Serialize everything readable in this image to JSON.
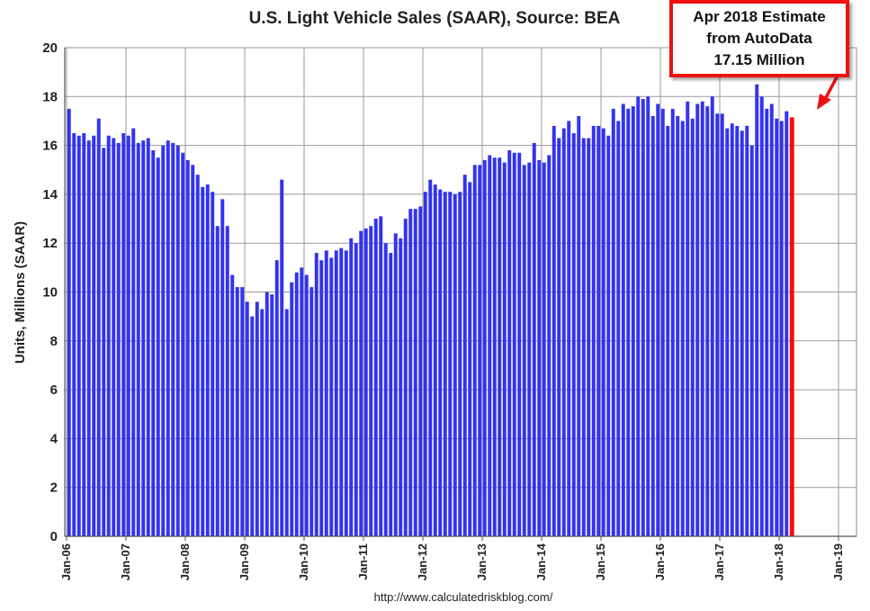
{
  "chart_data": {
    "type": "bar",
    "title": "U.S. Light Vehicle Sales (SAAR), Source: BEA",
    "ylabel": "Units, Millions (SAAR)",
    "xlabel": "",
    "ylim": [
      0,
      20
    ],
    "yticks": [
      "0",
      "2",
      "4",
      "6",
      "8",
      "10",
      "12",
      "14",
      "16",
      "18",
      "20"
    ],
    "xticks": [
      "Jan-06",
      "Jan-07",
      "Jan-08",
      "Jan-09",
      "Jan-10",
      "Jan-11",
      "Jan-12",
      "Jan-13",
      "Jan-14",
      "Jan-15",
      "Jan-16",
      "Jan-17",
      "Jan-18",
      "Jan-19"
    ],
    "start": "Jan-06",
    "grid": true,
    "series": [
      {
        "name": "Light Vehicle Sales (SAAR)",
        "values": [
          17.5,
          16.5,
          16.4,
          16.5,
          16.2,
          16.4,
          17.1,
          15.9,
          16.4,
          16.3,
          16.1,
          16.5,
          16.4,
          16.7,
          16.1,
          16.2,
          16.3,
          15.8,
          15.5,
          16.0,
          16.2,
          16.1,
          16.0,
          15.7,
          15.4,
          15.2,
          14.8,
          14.3,
          14.4,
          14.1,
          12.7,
          13.8,
          12.7,
          10.7,
          10.2,
          10.2,
          9.6,
          9.0,
          9.6,
          9.3,
          10.0,
          9.9,
          11.3,
          14.6,
          9.3,
          10.4,
          10.8,
          11.0,
          10.7,
          10.2,
          11.6,
          11.3,
          11.7,
          11.4,
          11.7,
          11.8,
          11.7,
          12.2,
          12.0,
          12.5,
          12.6,
          12.7,
          13.0,
          13.1,
          12.0,
          11.6,
          12.4,
          12.2,
          13.0,
          13.4,
          13.4,
          13.5,
          14.1,
          14.6,
          14.4,
          14.2,
          14.1,
          14.1,
          14.0,
          14.1,
          14.8,
          14.5,
          15.2,
          15.2,
          15.4,
          15.6,
          15.5,
          15.5,
          15.3,
          15.8,
          15.7,
          15.7,
          15.2,
          15.3,
          16.1,
          15.4,
          15.3,
          15.6,
          16.8,
          16.3,
          16.7,
          17.0,
          16.5,
          17.2,
          16.3,
          16.3,
          16.8,
          16.8,
          16.7,
          16.4,
          17.5,
          17.0,
          17.7,
          17.5,
          17.6,
          18.0,
          17.9,
          18.0,
          17.2,
          17.7,
          17.5,
          16.8,
          17.5,
          17.2,
          17.0,
          17.8,
          17.1,
          17.7,
          17.8,
          17.6,
          18.0,
          17.3,
          17.3,
          16.7,
          16.9,
          16.8,
          16.6,
          16.8,
          16.0,
          18.5,
          18.0,
          17.5,
          17.7,
          17.1,
          17.0,
          17.4,
          17.15
        ],
        "color": "#3333ee"
      }
    ],
    "highlight": {
      "label": "Apr 2018",
      "value": 17.15,
      "color": "#ee1111",
      "annotation_lines": [
        "Apr 2018 Estimate",
        "from AutoData",
        "17.15 Million"
      ]
    }
  },
  "source_url": "http://www.calculatedriskblog.com/"
}
